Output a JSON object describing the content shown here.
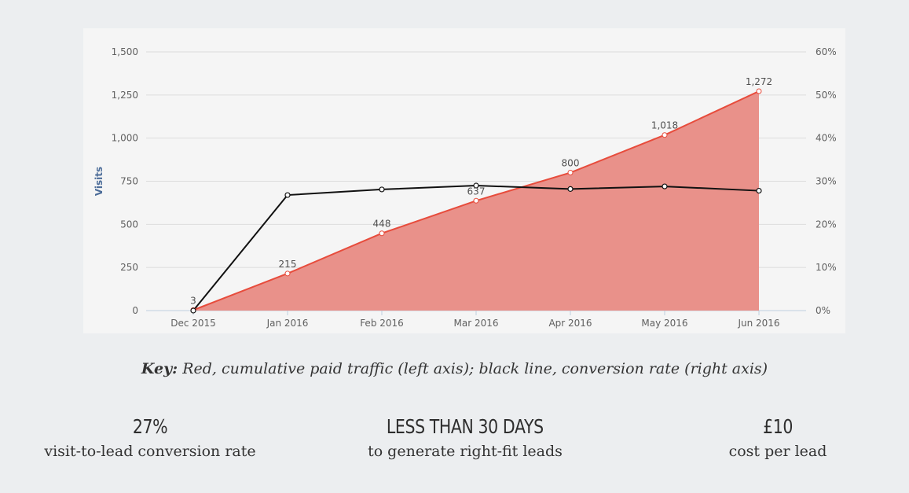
{
  "chart_data": {
    "type": "area-line-combo",
    "categories": [
      "Dec 2015",
      "Jan 2016",
      "Feb 2016",
      "Mar 2016",
      "Apr 2016",
      "May 2016",
      "Jun 2016"
    ],
    "series": [
      {
        "name": "Cumulative paid traffic",
        "axis": "left",
        "type": "area",
        "color": "#e74c3c",
        "fill": "#e9918a",
        "values": [
          3,
          215,
          448,
          637,
          800,
          1018,
          1272
        ]
      },
      {
        "name": "Conversion rate",
        "axis": "right",
        "type": "line",
        "color": "#111111",
        "values": [
          0,
          26.8,
          28.1,
          29.0,
          28.2,
          28.8,
          27.8
        ]
      }
    ],
    "ylabel": "Visits",
    "ylim": [
      0,
      1500
    ],
    "y_ticks": [
      "0",
      "250",
      "500",
      "750",
      "1,000",
      "1,250",
      "1,500"
    ],
    "y2lim": [
      0,
      60
    ],
    "y2_ticks": [
      "0%",
      "10%",
      "20%",
      "30%",
      "40%",
      "50%",
      "60%"
    ],
    "data_labels": [
      "3",
      "215",
      "448",
      "637",
      "800",
      "1,018",
      "1,272"
    ],
    "grid": true
  },
  "caption": {
    "key": "Key:",
    "text": "Red, cumulative paid traffic (left axis); black line, conversion rate (right axis)"
  },
  "stats": [
    {
      "value": "27%",
      "desc": "visit-to-lead conversion rate"
    },
    {
      "value": "LESS THAN 30 DAYS",
      "desc": "to generate right-fit leads"
    },
    {
      "value": "£10",
      "desc": "cost per lead"
    }
  ]
}
